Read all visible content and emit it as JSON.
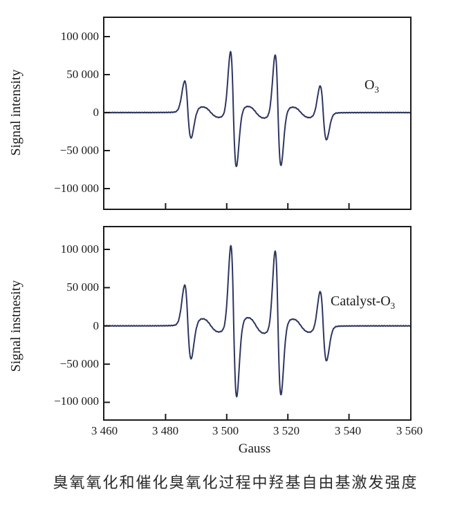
{
  "figure": {
    "caption": "臭氧氧化和催化臭氧化过程中羟基自由基激发强度",
    "xlabel": "Gauss",
    "x_tick_labels": [
      "3 460",
      "3 480",
      "3 500",
      "3 520",
      "3 540",
      "3 560"
    ],
    "y_tick_labels": [
      "100 000",
      "50 000",
      "0",
      "−50 000",
      "−100 000"
    ],
    "line_color": "#2d3560",
    "axis_color": "#1a1a1a"
  },
  "panels": [
    {
      "ylabel": "Signal intensity",
      "annotation_base": "O",
      "annotation_sub": "3"
    },
    {
      "ylabel": "Signal instnesity",
      "annotation_base": "Catalyst-O",
      "annotation_sub": "3"
    }
  ],
  "chart_data": [
    {
      "type": "line",
      "title": "EPR spectrum during ozonation",
      "series_label": "O3",
      "xlabel": "Gauss",
      "ylabel": "Signal intensity",
      "xlim": [
        3460,
        3560
      ],
      "ylim": [
        -126400,
        124500
      ],
      "x_ticks": [
        3460,
        3480,
        3500,
        3520,
        3540,
        3560
      ],
      "y_ticks": [
        100000,
        50000,
        0,
        -50000,
        -100000
      ],
      "grid": false,
      "legend": "none",
      "lineshape": "EPR first-derivative quartet (DMPO-OH, 1:2:2:1)",
      "peaks": [
        {
          "center": 3487.3,
          "width": 1.15,
          "amplitude": 42000
        },
        {
          "center": 3502.2,
          "width": 1.05,
          "amplitude": 85000
        },
        {
          "center": 3516.8,
          "width": 1.05,
          "amplitude": 82000
        },
        {
          "center": 3531.6,
          "width": 1.15,
          "amplitude": 40000
        }
      ],
      "minor_peaks": [
        {
          "center": 3494.8,
          "width": 3.2,
          "amplitude": 8000
        },
        {
          "center": 3509.6,
          "width": 3.2,
          "amplitude": 9000
        },
        {
          "center": 3524.3,
          "width": 3.2,
          "amplitude": 8000
        }
      ],
      "negative_lobe_scale": 0.9,
      "approx_maxima": [
        42000,
        85000,
        82000,
        40000
      ],
      "approx_minima": [
        -38000,
        -76000,
        -74000,
        -36000
      ],
      "baseline": 0
    },
    {
      "type": "line",
      "title": "EPR spectrum during catalytic ozonation",
      "series_label": "Catalyst-O3",
      "xlabel": "Gauss",
      "ylabel": "Signal instnesity",
      "xlim": [
        3460,
        3560
      ],
      "ylim": [
        -122200,
        128900
      ],
      "x_ticks": [
        3460,
        3480,
        3500,
        3520,
        3540,
        3560
      ],
      "y_ticks": [
        100000,
        50000,
        0,
        -50000,
        -100000
      ],
      "grid": false,
      "legend": "none",
      "lineshape": "EPR first-derivative quartet (DMPO-OH, 1:2:2:1)",
      "peaks": [
        {
          "center": 3487.3,
          "width": 1.15,
          "amplitude": 54000
        },
        {
          "center": 3502.3,
          "width": 1.05,
          "amplitude": 111000
        },
        {
          "center": 3516.8,
          "width": 1.05,
          "amplitude": 106000
        },
        {
          "center": 3531.6,
          "width": 1.15,
          "amplitude": 51000
        }
      ],
      "minor_peaks": [
        {
          "center": 3494.8,
          "width": 3.2,
          "amplitude": 10000
        },
        {
          "center": 3509.6,
          "width": 3.2,
          "amplitude": 12000
        },
        {
          "center": 3524.3,
          "width": 3.2,
          "amplitude": 10000
        }
      ],
      "negative_lobe_scale": 0.9,
      "approx_maxima": [
        54000,
        111000,
        106000,
        51000
      ],
      "approx_minima": [
        -49000,
        -100000,
        -95000,
        -46000
      ],
      "baseline": 0
    }
  ]
}
